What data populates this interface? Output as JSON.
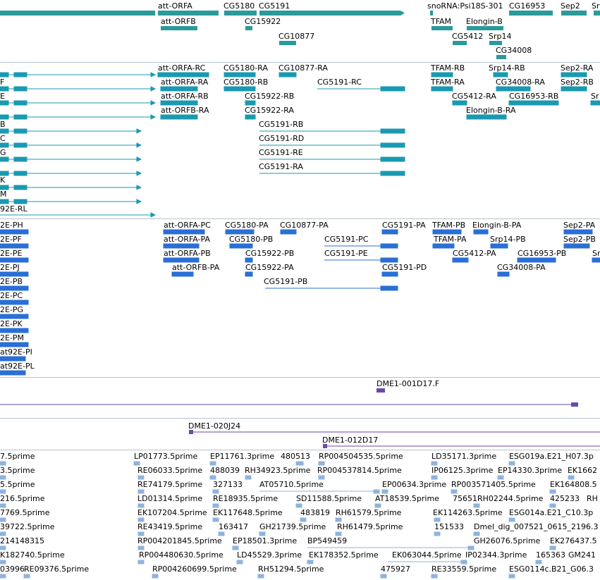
{
  "tracks": {
    "genes": {
      "labels": [
        "att-ORFA",
        "CG5180",
        "CG5191",
        "snoRNA:Psi18S-301",
        "CG16953",
        "Sep2",
        "Sr",
        "att-ORFB",
        "CG15922",
        "TFAM",
        "Elongin-B",
        "CG10877",
        "CG5412",
        "Srp14",
        "CG34008"
      ],
      "color": "#2a9a9a"
    },
    "transcripts": {
      "labels": [
        "att-ORFA-RC",
        "CG5180-RA",
        "CG10877-RA",
        "TFAM-RB",
        "Srp14-RB",
        "Sep2-RA",
        "att-ORFA-RA",
        "CG5180-RB",
        "CG5191-RC",
        "TFAM-RA",
        "CG34008-RA",
        "Sep2-RB",
        "att-ORFA-RB",
        "CG15922-RB",
        "CG5412-RA",
        "CG16953-RB",
        "att-ORFB-RA",
        "CG15922-RA",
        "Elongin-B-RA",
        "CG5191-RB",
        "CG5191-RD",
        "CG5191-RE",
        "CG5191-RA",
        "F",
        "E",
        "B",
        "C",
        "G",
        "K",
        "M",
        "92E-RL",
        "Sr"
      ],
      "color": "#1a9ab0"
    },
    "proteins": {
      "labels": [
        "att-ORFA-PC",
        "CG5180-PA",
        "CG10877-PA",
        "CG5191-PA",
        "TFAM-PB",
        "Elongin-B-PA",
        "Sep2-PA",
        "att-ORFA-PA",
        "CG5180-PB",
        "CG5191-PC",
        "TFAM-PA",
        "Srp14-PB",
        "Sep2-PB",
        "att-ORFA-PB",
        "CG15922-PB",
        "CG5191-PE",
        "CG5412-PA",
        "CG16953-PB",
        "att-ORFB-PA",
        "CG15922-PA",
        "CG5191-PD",
        "CG34008-PA",
        "CG5191-PB",
        "2E-PH",
        "2E-PF",
        "2E-PE",
        "2E-PJ",
        "2E-PB",
        "2E-PC",
        "2E-PG",
        "2E-PK",
        "2E-PM",
        "at92E-PI",
        "at92E-PL",
        "Sr"
      ],
      "color": "#2a6fd6"
    },
    "clones": {
      "labels": [
        "DME1-001D17.F",
        "DME1-020J24",
        "DME1-012D17"
      ],
      "color": "#6a4aa8"
    },
    "ests": {
      "color": "#8fb3dc",
      "rows": [
        [
          "7.5prime",
          "LP01773.5prime",
          "EP11761.3prime",
          "480513",
          "RP004504535.5prime",
          "LD35171.3prime",
          "ESG019a.E21_H07.3p"
        ],
        [
          "3.5prime",
          "RE06033.5prime",
          "488039",
          "RH34923.5prime",
          "RP004537814.5prime",
          "IP06125.3prime",
          "EP14330.3prime",
          "EK1662"
        ],
        [
          "5.5prime",
          "RE74179.5prime",
          "327133",
          "AT05710.5prime",
          "EP00634.3prime",
          "RP003571405.5prime",
          "EK164808.5"
        ],
        [
          "216.5prime",
          "LD01314.5prime",
          "RE18935.5prime",
          "SD11588.5prime",
          "AT18539.5prime",
          "7565",
          "1RH02244.5prime",
          "425233",
          "RH"
        ],
        [
          "7769.5prime",
          "EK107204.5prime",
          "EK117648.5prime",
          "483819",
          "RH61579.5prime",
          "EK114263.5prime",
          "ESG014a.E21_C10.3p"
        ],
        [
          "39722.5prime",
          "RE43419.5prime",
          "163417",
          "GH21739.5prime",
          "RH61479.5prime",
          "151533",
          "Dmel_dig_007521_0615_2196.3"
        ],
        [
          "214148315",
          "RP004201845.5prime",
          "EP18501.3prime",
          "BP549459",
          "GH26076.5prime",
          "EK276437.5"
        ],
        [
          "K182740.5prime",
          "RP004480630.5prime",
          "LD45529.3prime",
          "EK178352.5prime",
          "EK063044.5prime",
          "IP02344.3prime",
          "165363",
          "GM241"
        ],
        [
          "03996",
          "RE09376.5prime",
          "RP004260699.5prime",
          "RH51294.5prime",
          "475927",
          "RE33559.5prime",
          "ESG0114c.B21_G06.3"
        ]
      ]
    }
  }
}
